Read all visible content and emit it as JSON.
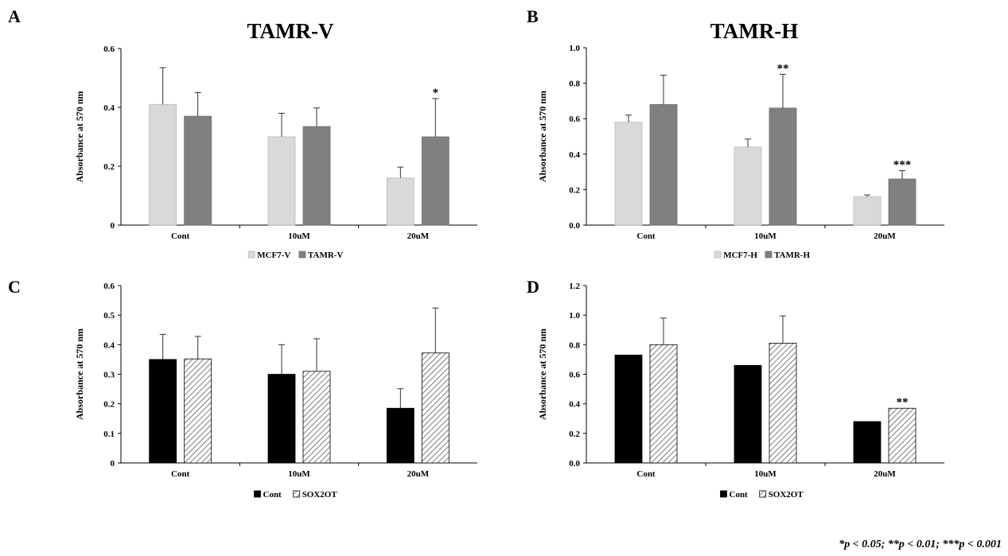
{
  "colors": {
    "light": "#d9d9d9",
    "dark": "#808080",
    "black": "#000000",
    "hatch": "#444444"
  },
  "footnote": "*p  < 0.05; **p < 0.01; ***p < 0.001",
  "chart_data": [
    {
      "panel": "A",
      "type": "bar",
      "title": "TAMR-V",
      "xlabel": "",
      "ylabel": "Absorbance at  570 nm",
      "categories": [
        "Cont",
        "10uM",
        "20uM"
      ],
      "ylim": [
        0,
        0.6
      ],
      "yticks": [
        "0",
        "0.2",
        "0.4",
        "0.6"
      ],
      "grid": false,
      "legend": "bottom",
      "series": [
        {
          "name": "MCF7-V",
          "style": "light",
          "values": [
            0.41,
            0.3,
            0.16
          ],
          "errors": [
            0.125,
            0.08,
            0.037
          ],
          "stars": [
            "",
            "",
            ""
          ]
        },
        {
          "name": "TAMR-V",
          "style": "dark",
          "values": [
            0.37,
            0.335,
            0.3
          ],
          "errors": [
            0.08,
            0.063,
            0.13
          ],
          "stars": [
            "",
            "",
            "*"
          ]
        }
      ]
    },
    {
      "panel": "B",
      "type": "bar",
      "title": "TAMR-H",
      "xlabel": "",
      "ylabel": "Absorbance at  570 nm",
      "categories": [
        "Cont",
        "10uM",
        "20uM"
      ],
      "ylim": [
        0,
        1.0
      ],
      "yticks": [
        "0.0",
        "0.2",
        "0.4",
        "0.6",
        "0.8",
        "1.0"
      ],
      "grid": false,
      "legend": "bottom",
      "series": [
        {
          "name": "MCF7-H",
          "style": "light",
          "values": [
            0.58,
            0.44,
            0.16
          ],
          "errors": [
            0.04,
            0.045,
            0.01
          ],
          "stars": [
            "",
            "",
            ""
          ]
        },
        {
          "name": "TAMR-H",
          "style": "dark",
          "values": [
            0.68,
            0.66,
            0.26
          ],
          "errors": [
            0.165,
            0.19,
            0.047
          ],
          "stars": [
            "",
            "**",
            "***"
          ]
        }
      ]
    },
    {
      "panel": "C",
      "type": "bar",
      "title": "",
      "xlabel": "",
      "ylabel": "Absorbance at  570 nm",
      "categories": [
        "Cont",
        "10uM",
        "20uM"
      ],
      "ylim": [
        0,
        0.6
      ],
      "yticks": [
        "0",
        "0.1",
        "0.2",
        "0.3",
        "0.4",
        "0.5",
        "0.6"
      ],
      "grid": false,
      "legend": "bottom",
      "series": [
        {
          "name": "Cont",
          "style": "black",
          "values": [
            0.35,
            0.3,
            0.185
          ],
          "errors": [
            0.085,
            0.1,
            0.066
          ],
          "stars": [
            "",
            "",
            ""
          ]
        },
        {
          "name": "SOX2OT",
          "style": "hatch",
          "values": [
            0.352,
            0.31,
            0.372
          ],
          "errors": [
            0.076,
            0.11,
            0.152
          ],
          "stars": [
            "",
            "",
            ""
          ]
        }
      ]
    },
    {
      "panel": "D",
      "type": "bar",
      "title": "",
      "xlabel": "",
      "ylabel": "Absorbance at  570 nm",
      "categories": [
        "Cont",
        "10uM",
        "20uM"
      ],
      "ylim": [
        0,
        1.2
      ],
      "yticks": [
        "0.0",
        "0.2",
        "0.4",
        "0.6",
        "0.8",
        "1.0",
        "1.2"
      ],
      "grid": false,
      "legend": "bottom",
      "series": [
        {
          "name": "Cont",
          "style": "black",
          "values": [
            0.73,
            0.66,
            0.28
          ],
          "errors": [
            0,
            0,
            0
          ],
          "stars": [
            "",
            "",
            ""
          ]
        },
        {
          "name": "SOX2OT",
          "style": "hatch",
          "values": [
            0.8,
            0.81,
            0.37
          ],
          "errors": [
            0.18,
            0.185,
            0
          ],
          "stars": [
            "",
            "",
            "**"
          ]
        }
      ]
    }
  ]
}
